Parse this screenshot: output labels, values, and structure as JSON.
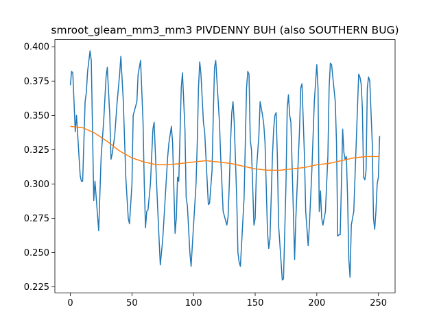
{
  "chart_data": {
    "type": "line",
    "title": "smroot_gleam_mm3_mm3 PIVDENNY BUH (also SOUTHERN BUG)",
    "series": [
      {
        "color": "#1f77b4",
        "x": [
          0,
          1,
          2,
          4,
          5,
          8,
          9,
          10,
          12,
          13,
          14,
          16,
          17,
          19,
          20,
          23,
          25,
          27,
          29,
          30,
          32,
          33,
          34,
          36,
          38,
          40,
          41,
          43,
          45,
          47,
          48,
          50,
          51,
          54,
          55,
          57,
          59,
          60,
          61,
          62,
          63,
          65,
          67,
          68,
          70,
          72,
          73,
          75,
          77,
          79,
          80,
          82,
          83,
          85,
          86,
          87,
          88,
          90,
          91,
          93,
          94,
          95,
          97,
          98,
          100,
          102,
          103,
          104,
          105,
          106,
          108,
          109,
          112,
          113,
          115,
          116,
          117,
          118,
          119,
          121,
          122,
          123,
          124,
          127,
          128,
          129,
          130,
          131,
          132,
          133,
          135,
          136,
          137,
          138,
          141,
          142,
          143,
          144,
          145,
          146,
          147,
          149,
          150,
          151,
          153,
          154,
          156,
          157,
          158,
          160,
          161,
          162,
          164,
          165,
          166,
          167,
          168,
          169,
          172,
          173,
          175,
          176,
          177,
          178,
          179,
          181,
          182,
          183,
          186,
          187,
          188,
          190,
          191,
          193,
          194,
          196,
          198,
          200,
          201,
          202,
          203,
          204,
          205,
          207,
          209,
          210,
          211,
          212,
          215,
          216,
          217,
          218,
          219,
          220,
          221,
          222,
          223,
          224,
          225,
          226,
          227,
          228,
          230,
          232,
          234,
          235,
          236,
          237,
          238,
          239,
          240,
          241,
          242,
          243,
          245,
          246,
          247,
          248,
          249,
          250,
          251
        ],
        "values": [
          0.372,
          0.382,
          0.381,
          0.338,
          0.35,
          0.306,
          0.302,
          0.302,
          0.36,
          0.367,
          0.382,
          0.397,
          0.39,
          0.288,
          0.302,
          0.266,
          0.32,
          0.345,
          0.378,
          0.385,
          0.35,
          0.318,
          0.322,
          0.335,
          0.36,
          0.38,
          0.393,
          0.36,
          0.305,
          0.275,
          0.271,
          0.3,
          0.35,
          0.36,
          0.38,
          0.39,
          0.345,
          0.3,
          0.268,
          0.28,
          0.281,
          0.3,
          0.34,
          0.345,
          0.3,
          0.26,
          0.241,
          0.26,
          0.29,
          0.32,
          0.33,
          0.342,
          0.33,
          0.264,
          0.275,
          0.305,
          0.302,
          0.37,
          0.381,
          0.34,
          0.29,
          0.284,
          0.25,
          0.24,
          0.27,
          0.3,
          0.33,
          0.37,
          0.389,
          0.38,
          0.345,
          0.338,
          0.285,
          0.286,
          0.31,
          0.35,
          0.385,
          0.39,
          0.375,
          0.345,
          0.32,
          0.3,
          0.28,
          0.27,
          0.276,
          0.3,
          0.33,
          0.352,
          0.36,
          0.345,
          0.29,
          0.25,
          0.243,
          0.24,
          0.29,
          0.33,
          0.37,
          0.382,
          0.38,
          0.332,
          0.325,
          0.27,
          0.275,
          0.31,
          0.335,
          0.36,
          0.35,
          0.343,
          0.33,
          0.265,
          0.253,
          0.26,
          0.32,
          0.34,
          0.35,
          0.352,
          0.32,
          0.27,
          0.23,
          0.231,
          0.3,
          0.355,
          0.365,
          0.35,
          0.345,
          0.28,
          0.245,
          0.275,
          0.34,
          0.37,
          0.373,
          0.32,
          0.28,
          0.255,
          0.27,
          0.31,
          0.36,
          0.387,
          0.37,
          0.28,
          0.295,
          0.275,
          0.27,
          0.28,
          0.32,
          0.37,
          0.388,
          0.387,
          0.36,
          0.33,
          0.262,
          0.263,
          0.263,
          0.3,
          0.34,
          0.323,
          0.318,
          0.32,
          0.29,
          0.245,
          0.232,
          0.27,
          0.28,
          0.33,
          0.38,
          0.378,
          0.373,
          0.355,
          0.305,
          0.303,
          0.31,
          0.37,
          0.378,
          0.375,
          0.33,
          0.275,
          0.267,
          0.28,
          0.3,
          0.305,
          0.335
        ]
      },
      {
        "color": "#ff7f0e",
        "x": [
          0,
          10,
          20,
          30,
          40,
          50,
          60,
          70,
          80,
          90,
          100,
          110,
          120,
          130,
          140,
          150,
          160,
          170,
          180,
          190,
          200,
          210,
          220,
          230,
          240,
          251
        ],
        "values": [
          0.342,
          0.341,
          0.337,
          0.331,
          0.324,
          0.319,
          0.316,
          0.314,
          0.314,
          0.315,
          0.316,
          0.317,
          0.316,
          0.315,
          0.313,
          0.311,
          0.31,
          0.31,
          0.311,
          0.312,
          0.314,
          0.315,
          0.317,
          0.319,
          0.32,
          0.32
        ]
      }
    ],
    "xlim": [
      -12.55,
      263.55
    ],
    "xticks": [
      0,
      50,
      100,
      150,
      200,
      250
    ],
    "ylim": [
      0.2207,
      0.4053
    ],
    "yticks": [
      0.225,
      {
        "value": 0.25,
        "label": "0.250"
      },
      0.275,
      {
        "value": 0.3,
        "label": "0.300"
      },
      0.325,
      {
        "value": 0.35,
        "label": "0.350"
      },
      0.375,
      {
        "value": 0.4,
        "label": "0.400"
      }
    ]
  }
}
